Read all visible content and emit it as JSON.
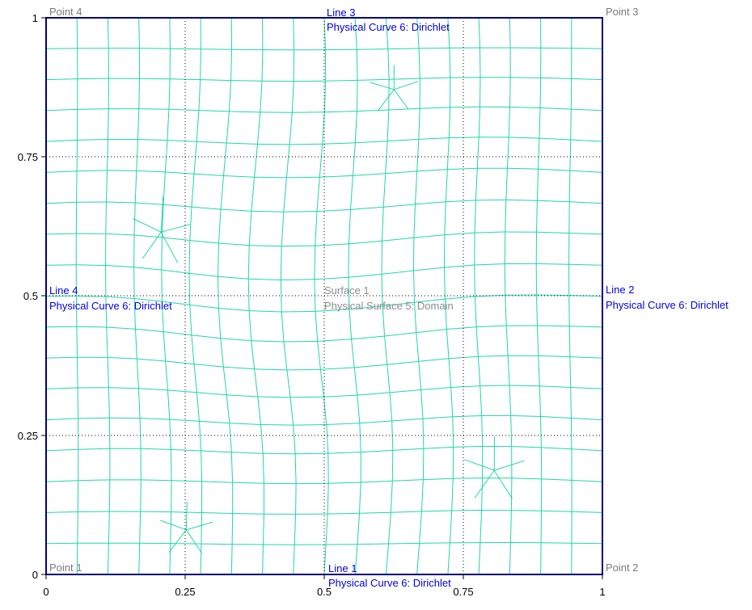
{
  "colors": {
    "background": "#ffffff",
    "boundary": "#00007f",
    "mesh": "#22d6a8",
    "grid": "#000000",
    "curve_label": "#0000e6",
    "point_label": "#7a7a7a",
    "surface_label": "#8c8c8c",
    "axis_label": "#000000"
  },
  "axes": {
    "x_ticks": [
      "0",
      "0.25",
      "0.5",
      "0.75",
      "1"
    ],
    "y_ticks": [
      "1",
      "0.75",
      "0.5",
      "0.25",
      "0"
    ]
  },
  "points": {
    "p1": "Point 1",
    "p2": "Point 2",
    "p3": "Point 3",
    "p4": "Point 4"
  },
  "lines": {
    "line1": {
      "name": "Line 1",
      "physical": "Physical Curve 6: Dirichlet"
    },
    "line2": {
      "name": "Line 2",
      "physical": "Physical Curve 6: Dirichlet"
    },
    "line3": {
      "name": "Line 3",
      "physical": "Physical Curve 6: Dirichlet"
    },
    "line4": {
      "name": "Line 4",
      "physical": "Physical Curve 6: Dirichlet"
    }
  },
  "surface": {
    "name": "Surface 1",
    "physical": "Physical Surface 5: Domain"
  }
}
